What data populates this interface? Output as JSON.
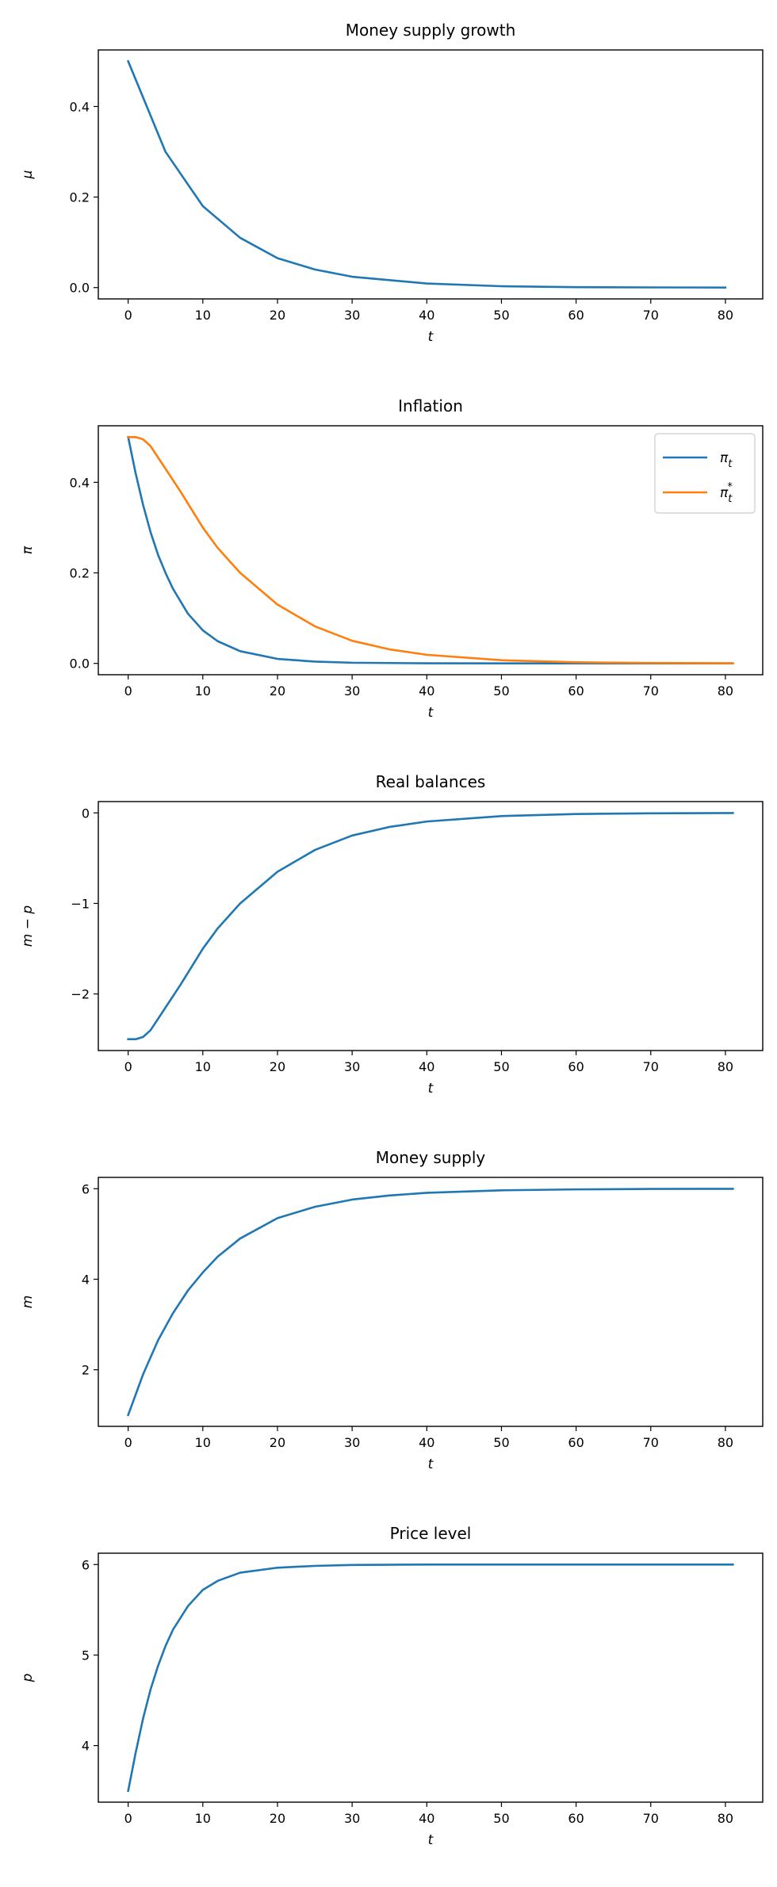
{
  "chart_data": [
    {
      "type": "line",
      "title": "Money supply growth",
      "xlabel": "t",
      "ylabel": "μ",
      "xlim": [
        -4,
        85
      ],
      "ylim": [
        -0.025,
        0.525
      ],
      "xticks": [
        0,
        10,
        20,
        30,
        40,
        50,
        60,
        70,
        80
      ],
      "yticks": [
        0.0,
        0.2,
        0.4
      ],
      "ytick_labels": [
        "0.0",
        "0.2",
        "0.4"
      ],
      "grid": false,
      "series": [
        {
          "color": "#1f77b4",
          "x": [
            0,
            5,
            10,
            15,
            20,
            25,
            30,
            40,
            50,
            60,
            70,
            80
          ],
          "y": [
            0.5,
            0.3,
            0.18,
            0.11,
            0.065,
            0.04,
            0.024,
            0.009,
            0.003,
            0.001,
            0.0004,
            0.0001
          ]
        }
      ]
    },
    {
      "type": "line",
      "title": "Inflation",
      "xlabel": "t",
      "ylabel": "π",
      "xlim": [
        -4,
        85
      ],
      "ylim": [
        -0.025,
        0.525
      ],
      "xticks": [
        0,
        10,
        20,
        30,
        40,
        50,
        60,
        70,
        80
      ],
      "yticks": [
        0.0,
        0.2,
        0.4
      ],
      "ytick_labels": [
        "0.0",
        "0.2",
        "0.4"
      ],
      "grid": false,
      "legend": {
        "placement": "top-right"
      },
      "series": [
        {
          "name": "π_t",
          "color": "#1f77b4",
          "x": [
            0,
            1,
            2,
            3,
            4,
            5,
            6,
            8,
            10,
            12,
            15,
            20,
            25,
            30,
            40,
            50,
            60,
            70,
            81
          ],
          "y": [
            0.5,
            0.42,
            0.35,
            0.29,
            0.24,
            0.2,
            0.165,
            0.11,
            0.073,
            0.049,
            0.027,
            0.01,
            0.004,
            0.0015,
            0.0002,
            0.0,
            0.0,
            0.0,
            0.0
          ]
        },
        {
          "name": "π_t^*",
          "color": "#ff7f0e",
          "x": [
            0,
            1,
            2,
            3,
            5,
            7,
            10,
            12,
            15,
            20,
            25,
            30,
            35,
            40,
            50,
            60,
            70,
            81
          ],
          "y": [
            0.5,
            0.5,
            0.495,
            0.48,
            0.43,
            0.38,
            0.3,
            0.255,
            0.2,
            0.13,
            0.082,
            0.05,
            0.031,
            0.019,
            0.007,
            0.0025,
            0.0009,
            0.0003
          ]
        }
      ]
    },
    {
      "type": "line",
      "title": "Real balances",
      "xlabel": "t",
      "ylabel": "m − p",
      "xlim": [
        -4,
        85
      ],
      "ylim": [
        -2.625,
        0.125
      ],
      "xticks": [
        0,
        10,
        20,
        30,
        40,
        50,
        60,
        70,
        80
      ],
      "yticks": [
        -2,
        -1,
        0
      ],
      "ytick_labels": [
        "−2",
        "−1",
        "0"
      ],
      "grid": false,
      "series": [
        {
          "color": "#1f77b4",
          "x": [
            0,
            1,
            2,
            3,
            5,
            7,
            10,
            12,
            15,
            20,
            25,
            30,
            35,
            40,
            50,
            60,
            70,
            81
          ],
          "y": [
            -2.5,
            -2.5,
            -2.475,
            -2.4,
            -2.15,
            -1.9,
            -1.5,
            -1.275,
            -1.0,
            -0.65,
            -0.41,
            -0.25,
            -0.155,
            -0.095,
            -0.035,
            -0.0125,
            -0.0045,
            -0.0015
          ]
        }
      ]
    },
    {
      "type": "line",
      "title": "Money supply",
      "xlabel": "t",
      "ylabel": "m",
      "xlim": [
        -4,
        85
      ],
      "ylim": [
        0.75,
        6.25
      ],
      "xticks": [
        0,
        10,
        20,
        30,
        40,
        50,
        60,
        70,
        80
      ],
      "yticks": [
        2,
        4,
        6
      ],
      "ytick_labels": [
        "2",
        "4",
        "6"
      ],
      "grid": false,
      "series": [
        {
          "color": "#1f77b4",
          "x": [
            0,
            2,
            4,
            6,
            8,
            10,
            12,
            15,
            20,
            25,
            30,
            35,
            40,
            50,
            60,
            70,
            81
          ],
          "y": [
            1.0,
            1.9,
            2.65,
            3.25,
            3.75,
            4.15,
            4.5,
            4.9,
            5.35,
            5.6,
            5.76,
            5.85,
            5.91,
            5.965,
            5.985,
            5.995,
            5.998
          ]
        }
      ]
    },
    {
      "type": "line",
      "title": "Price level",
      "xlabel": "t",
      "ylabel": "p",
      "xlim": [
        -4,
        85
      ],
      "ylim": [
        3.375,
        6.125
      ],
      "xticks": [
        0,
        10,
        20,
        30,
        40,
        50,
        60,
        70,
        80
      ],
      "yticks": [
        4,
        5,
        6
      ],
      "ytick_labels": [
        "4",
        "5",
        "6"
      ],
      "grid": false,
      "series": [
        {
          "color": "#1f77b4",
          "x": [
            0,
            1,
            2,
            3,
            4,
            5,
            6,
            8,
            10,
            12,
            15,
            20,
            25,
            30,
            40,
            50,
            60,
            70,
            81
          ],
          "y": [
            3.5,
            3.92,
            4.3,
            4.62,
            4.88,
            5.1,
            5.28,
            5.54,
            5.72,
            5.82,
            5.91,
            5.965,
            5.985,
            5.995,
            6.0,
            6.0,
            6.0,
            6.0,
            6.0
          ]
        }
      ]
    }
  ]
}
